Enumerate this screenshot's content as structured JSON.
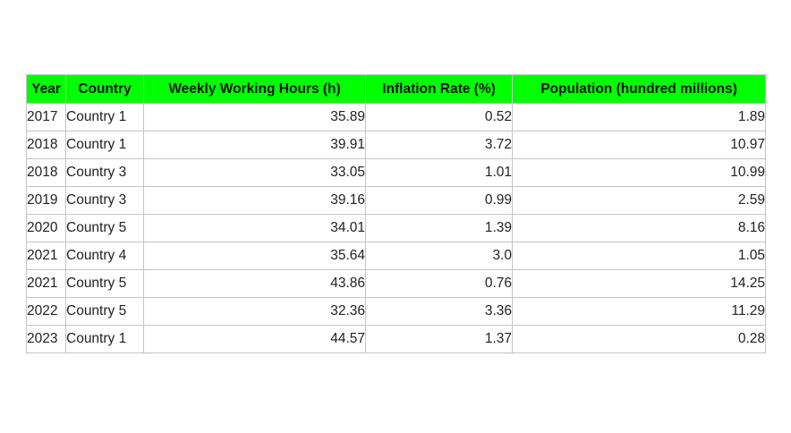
{
  "header_color": "#00ff00",
  "chart_data": {
    "type": "table",
    "columns": [
      "Year",
      "Country",
      "Weekly Working Hours (h)",
      "Inflation Rate (%)",
      "Population (hundred millions)"
    ],
    "rows": [
      [
        "2017",
        "Country 1",
        "35.89",
        "0.52",
        "1.89"
      ],
      [
        "2018",
        "Country 1",
        "39.91",
        "3.72",
        "10.97"
      ],
      [
        "2018",
        "Country 3",
        "33.05",
        "1.01",
        "10.99"
      ],
      [
        "2019",
        "Country 3",
        "39.16",
        "0.99",
        "2.59"
      ],
      [
        "2020",
        "Country 5",
        "34.01",
        "1.39",
        "8.16"
      ],
      [
        "2021",
        "Country 4",
        "35.64",
        "3.0",
        "1.05"
      ],
      [
        "2021",
        "Country 5",
        "43.86",
        "0.76",
        "14.25"
      ],
      [
        "2022",
        "Country 5",
        "32.36",
        "3.36",
        "11.29"
      ],
      [
        "2023",
        "Country 1",
        "44.57",
        "1.37",
        "0.28"
      ]
    ]
  }
}
